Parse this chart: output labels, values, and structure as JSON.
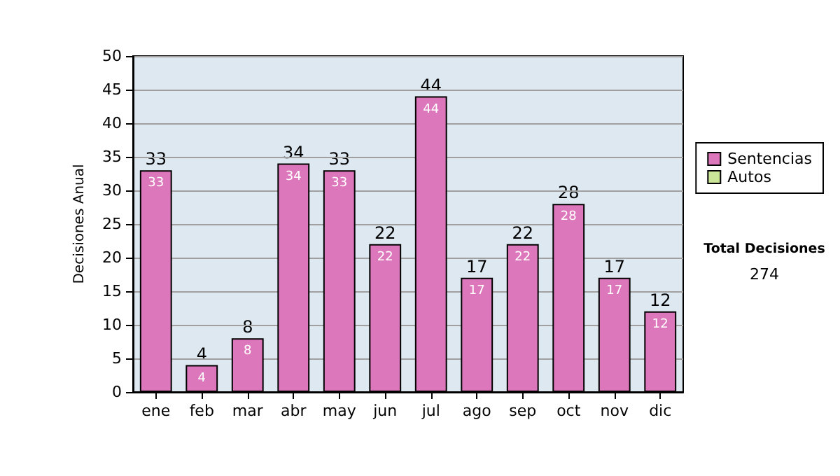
{
  "chart_data": {
    "type": "bar",
    "ylabel": "Decisiones Anual",
    "categories": [
      "ene",
      "feb",
      "mar",
      "abr",
      "may",
      "jun",
      "jul",
      "ago",
      "sep",
      "oct",
      "nov",
      "dic"
    ],
    "series": [
      {
        "name": "Sentencias",
        "color": "#dd77bb",
        "values": [
          33,
          4,
          8,
          34,
          33,
          22,
          44,
          17,
          22,
          28,
          17,
          12
        ]
      },
      {
        "name": "Autos",
        "color": "#cce699",
        "values": [
          null,
          null,
          null,
          null,
          null,
          null,
          null,
          null,
          null,
          null,
          null,
          null
        ]
      }
    ],
    "stacked": true,
    "data_labels": true,
    "totals": [
      "33",
      "4",
      "8",
      "34",
      "33",
      "22",
      "44",
      "17",
      "22",
      "28",
      "17",
      "12"
    ],
    "ylim": [
      0,
      50
    ],
    "yticks": [
      0,
      5,
      10,
      15,
      20,
      25,
      30,
      35,
      40,
      45,
      50
    ],
    "grid": "y",
    "legend": "right",
    "annotations": [
      "Total Decisiones",
      "274"
    ]
  }
}
